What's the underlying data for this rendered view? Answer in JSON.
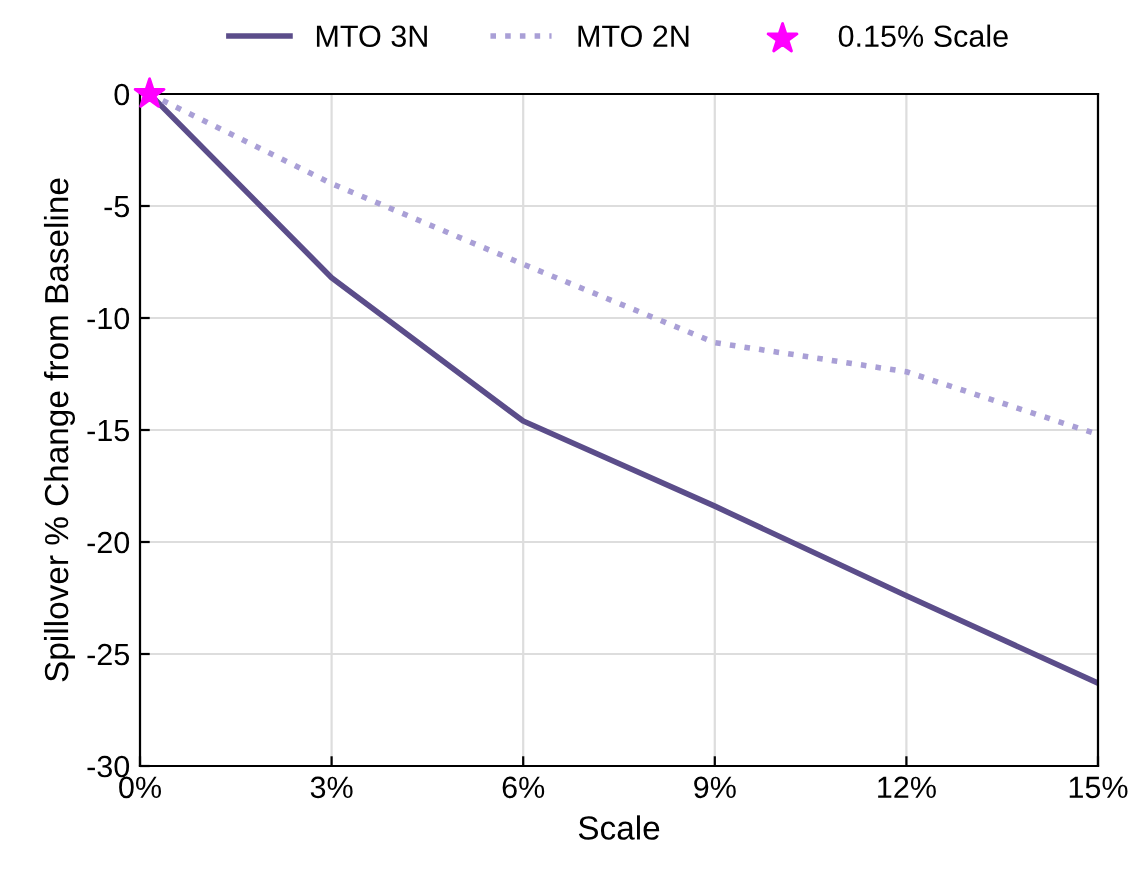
{
  "chart_data": {
    "type": "line",
    "xlabel": "Scale",
    "ylabel": "Spillover % Change from Baseline",
    "xlim": [
      0,
      15
    ],
    "xticks": [
      {
        "value": 0,
        "label": "0%"
      },
      {
        "value": 3,
        "label": "3%"
      },
      {
        "value": 6,
        "label": "6%"
      },
      {
        "value": 9,
        "label": "9%"
      },
      {
        "value": 12,
        "label": "12%"
      },
      {
        "value": 15,
        "label": "15%"
      }
    ],
    "ylim": [
      -30,
      0
    ],
    "yticks": [
      -30,
      -25,
      -20,
      -15,
      -10,
      -5,
      0
    ],
    "grid": true,
    "legend": "top",
    "series": [
      {
        "name": "MTO 3N",
        "color": "#5b4d8a",
        "line_style": "solid",
        "marker": "none",
        "x": [
          0.15,
          3,
          6,
          9,
          12,
          15
        ],
        "values": [
          0,
          -8.2,
          -14.6,
          -18.4,
          -22.4,
          -26.3
        ]
      },
      {
        "name": "MTO 2N",
        "color": "#a99fd6",
        "line_style": "dotted",
        "marker": "none",
        "x": [
          0.15,
          3,
          6,
          9,
          12,
          15
        ],
        "values": [
          0,
          -4.0,
          -7.6,
          -11.1,
          -12.4,
          -15.2
        ]
      },
      {
        "name": "0.15% Scale",
        "type": "scatter",
        "color": "#ff00ff",
        "marker": "star",
        "x": [
          0.15
        ],
        "values": [
          0
        ]
      }
    ]
  }
}
